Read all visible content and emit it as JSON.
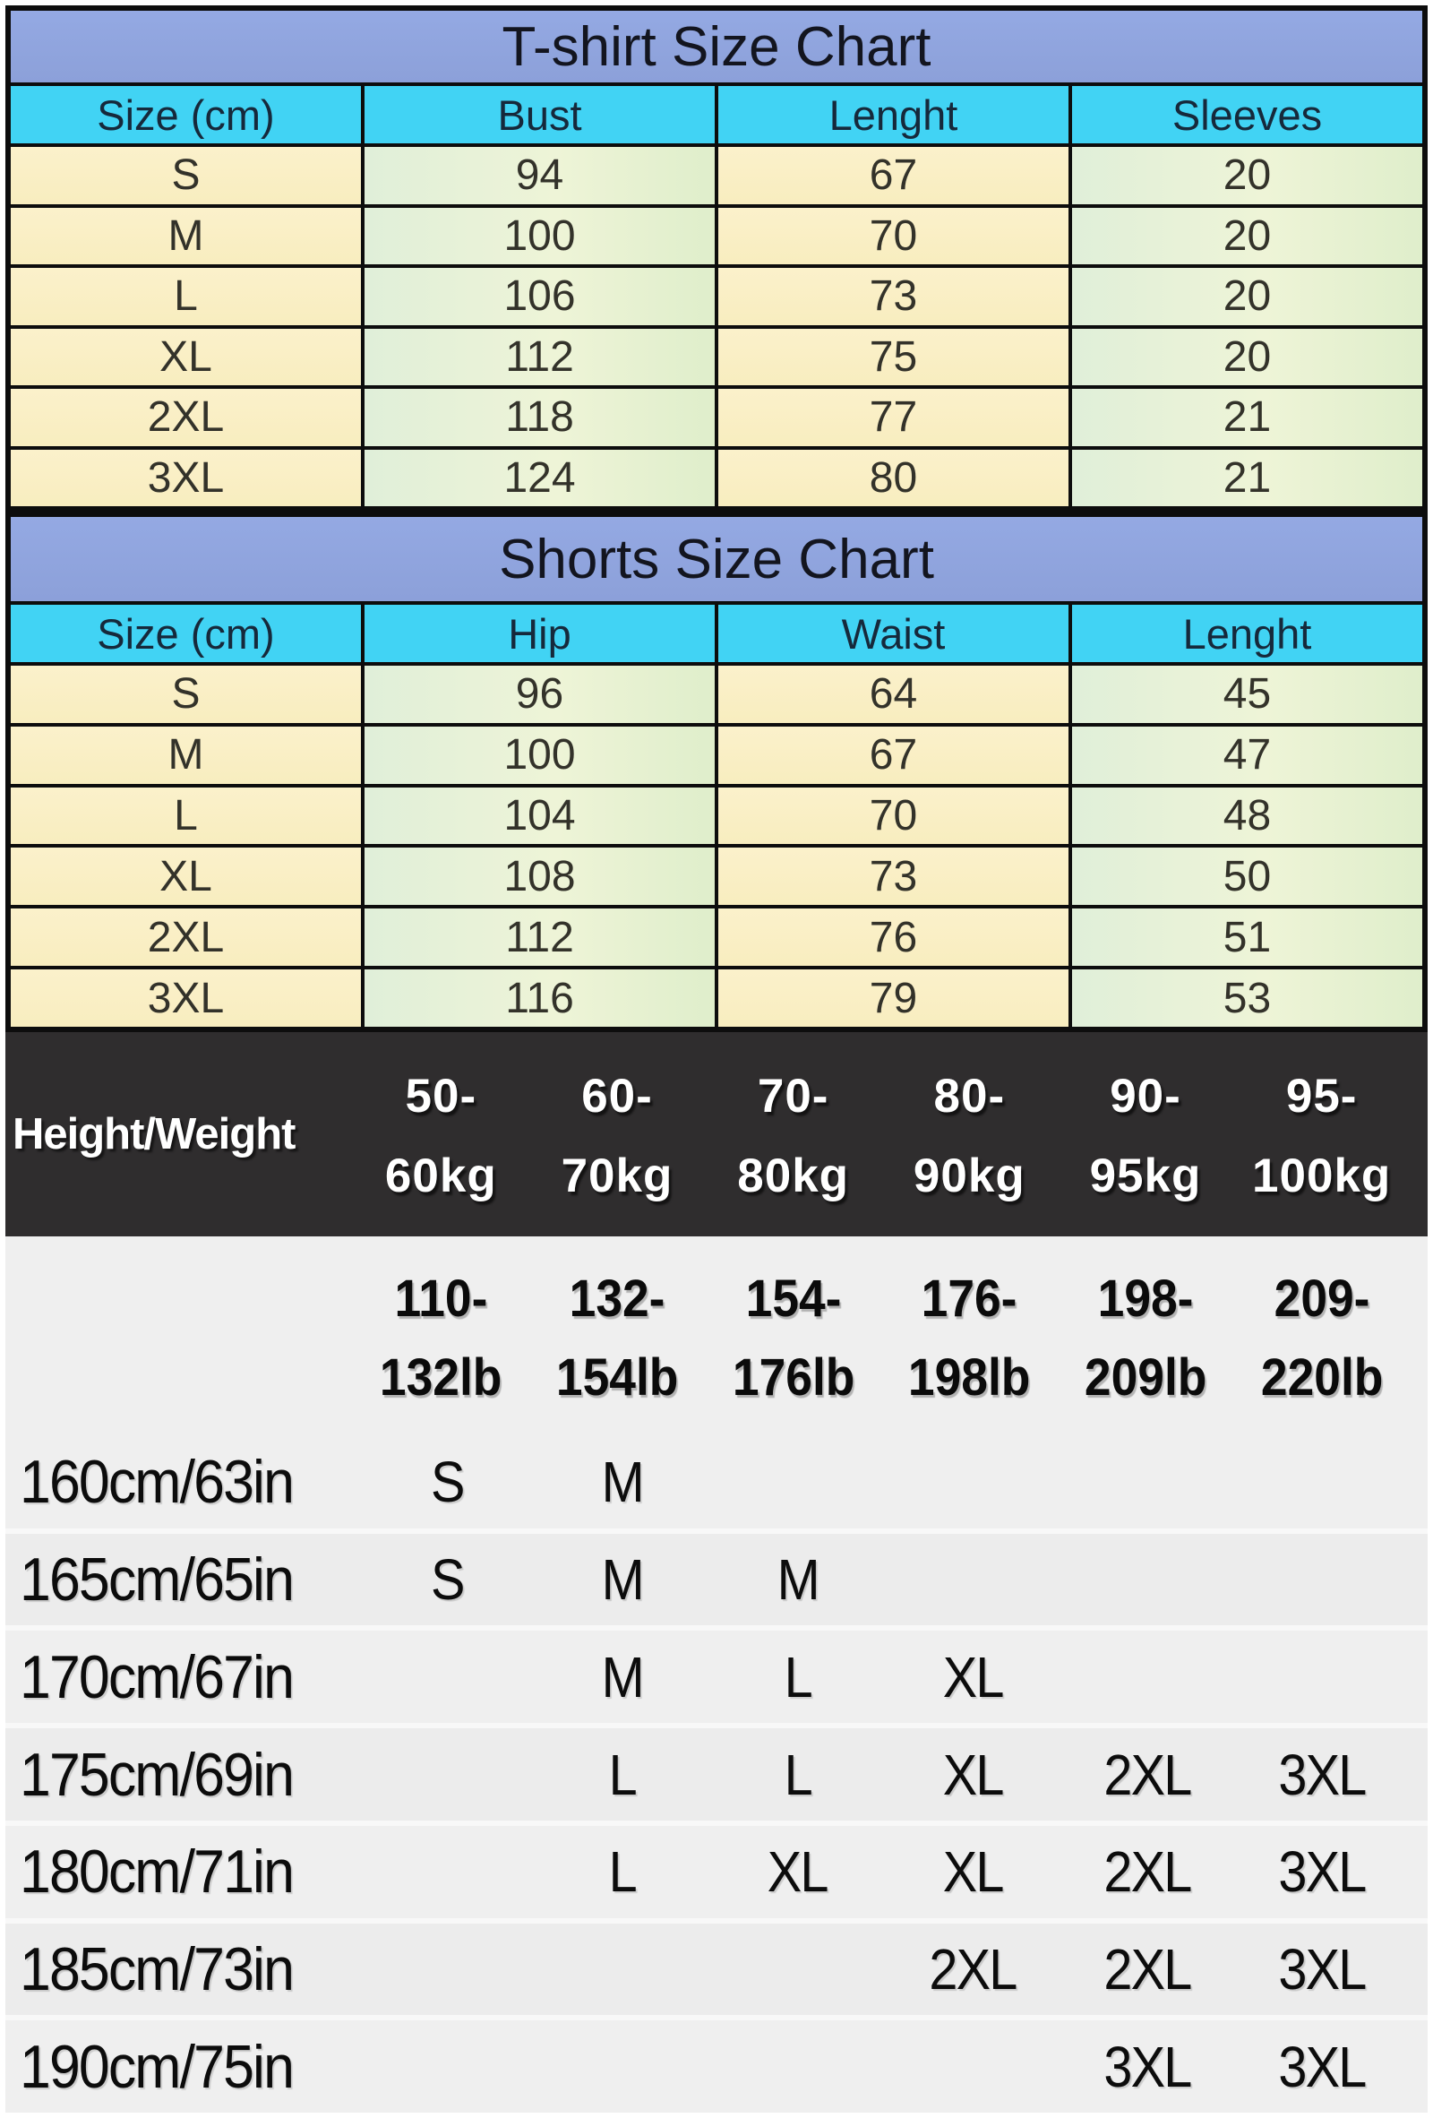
{
  "tshirt_table": {
    "title": "T-shirt Size Chart",
    "headers": [
      "Size (cm)",
      "Bust",
      "Lenght",
      "Sleeves"
    ],
    "rows": [
      [
        "S",
        "94",
        "67",
        "20"
      ],
      [
        "M",
        "100",
        "70",
        "20"
      ],
      [
        "L",
        "106",
        "73",
        "20"
      ],
      [
        "XL",
        "112",
        "75",
        "20"
      ],
      [
        "2XL",
        "118",
        "77",
        "21"
      ],
      [
        "3XL",
        "124",
        "80",
        "21"
      ]
    ]
  },
  "shorts_table": {
    "title": "Shorts Size Chart",
    "headers": [
      "Size (cm)",
      "Hip",
      "Waist",
      "Lenght"
    ],
    "rows": [
      [
        "S",
        "96",
        "64",
        "45"
      ],
      [
        "M",
        "100",
        "67",
        "47"
      ],
      [
        "L",
        "104",
        "70",
        "48"
      ],
      [
        "XL",
        "108",
        "73",
        "50"
      ],
      [
        "2XL",
        "112",
        "76",
        "51"
      ],
      [
        "3XL",
        "116",
        "79",
        "53"
      ]
    ]
  },
  "height_weight": {
    "corner_label": "Height/Weight",
    "kg_columns": [
      [
        "50-",
        "60kg"
      ],
      [
        "60-",
        "70kg"
      ],
      [
        "70-",
        "80kg"
      ],
      [
        "80-",
        "90kg"
      ],
      [
        "90-",
        "95kg"
      ],
      [
        "95-",
        "100kg"
      ]
    ],
    "lb_columns": [
      [
        "110-",
        "132lb"
      ],
      [
        "132-",
        "154lb"
      ],
      [
        "154-",
        "176lb"
      ],
      [
        "176-",
        "198lb"
      ],
      [
        "198-",
        "209lb"
      ],
      [
        "209-",
        "220lb"
      ]
    ],
    "rows": [
      {
        "height": "160cm/63in",
        "sizes": [
          "S",
          "M",
          "",
          "",
          "",
          ""
        ]
      },
      {
        "height": "165cm/65in",
        "sizes": [
          "S",
          "M",
          "M",
          "",
          "",
          ""
        ]
      },
      {
        "height": "170cm/67in",
        "sizes": [
          "",
          "M",
          "L",
          "XL",
          "",
          ""
        ]
      },
      {
        "height": "175cm/69in",
        "sizes": [
          "",
          "L",
          "L",
          "XL",
          "2XL",
          "3XL"
        ]
      },
      {
        "height": "180cm/71in",
        "sizes": [
          "",
          "L",
          "XL",
          "XL",
          "2XL",
          "3XL"
        ]
      },
      {
        "height": "185cm/73in",
        "sizes": [
          "",
          "",
          "",
          "2XL",
          "2XL",
          "3XL"
        ]
      },
      {
        "height": "190cm/75in",
        "sizes": [
          "",
          "",
          "",
          "",
          "3XL",
          "3XL"
        ]
      }
    ]
  },
  "colors": {
    "title_band": "#8FA5DF",
    "header_band": "#41D3F4",
    "cream_cell": "#FAEFC5",
    "green_cell": "#E3F0DA",
    "grid_line": "#0D0D0D",
    "dark_band": "#2F2D2E",
    "light_band": "#EFEFEF",
    "matrix_row": "#EDEDED"
  }
}
